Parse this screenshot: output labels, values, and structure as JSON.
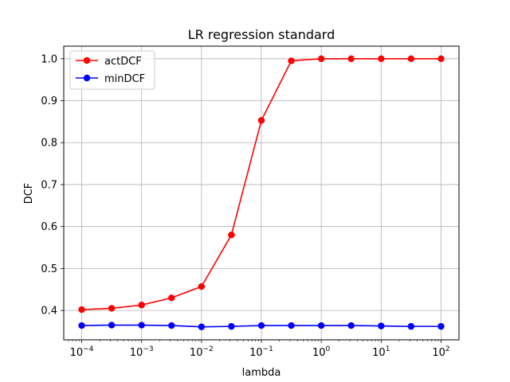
{
  "chart_data": {
    "type": "line",
    "title": "LR regression standard",
    "xlabel": "lambda",
    "ylabel": "DCF",
    "x_scale": "log",
    "xlim_exp": [
      -4.3,
      2.3
    ],
    "ylim": [
      0.33,
      1.03
    ],
    "grid": true,
    "legend_position": "top-left",
    "x": [
      0.0001,
      0.000316,
      0.001,
      0.00316,
      0.01,
      0.0316,
      0.1,
      0.316,
      1,
      3.16,
      10,
      31.6,
      100
    ],
    "x_ticks": [
      {
        "exp": -4,
        "base": "10",
        "sup": "−4"
      },
      {
        "exp": -3,
        "base": "10",
        "sup": "−3"
      },
      {
        "exp": -2,
        "base": "10",
        "sup": "−2"
      },
      {
        "exp": -1,
        "base": "10",
        "sup": "−1"
      },
      {
        "exp": 0,
        "base": "10",
        "sup": "0"
      },
      {
        "exp": 1,
        "base": "10",
        "sup": "1"
      },
      {
        "exp": 2,
        "base": "10",
        "sup": "2"
      }
    ],
    "y_ticks": [
      {
        "value": 0.4,
        "label": "0.4"
      },
      {
        "value": 0.5,
        "label": "0.5"
      },
      {
        "value": 0.6,
        "label": "0.6"
      },
      {
        "value": 0.7,
        "label": "0.7"
      },
      {
        "value": 0.8,
        "label": "0.8"
      },
      {
        "value": 0.9,
        "label": "0.9"
      },
      {
        "value": 1.0,
        "label": "1.0"
      }
    ],
    "series": [
      {
        "name": "actDCF",
        "color": "#ff0000",
        "values": [
          0.402,
          0.405,
          0.413,
          0.43,
          0.457,
          0.58,
          0.853,
          0.995,
          1.0,
          1.0,
          1.0,
          1.0,
          1.0
        ]
      },
      {
        "name": "minDCF",
        "color": "#0000ff",
        "values": [
          0.364,
          0.365,
          0.365,
          0.364,
          0.361,
          0.362,
          0.364,
          0.364,
          0.364,
          0.364,
          0.363,
          0.362,
          0.362
        ]
      }
    ]
  }
}
